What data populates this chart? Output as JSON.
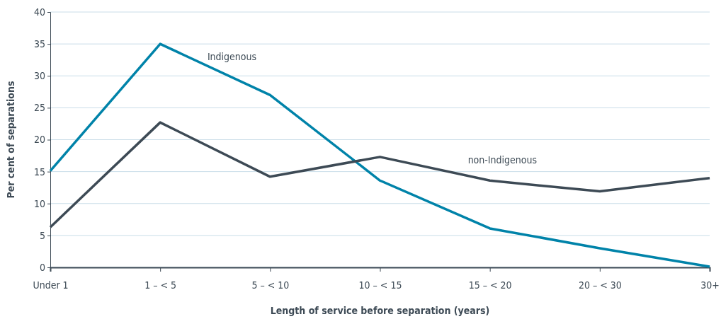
{
  "chart_data": {
    "type": "line",
    "xlabel": "Length of service before separation (years)",
    "ylabel": "Per cent of separations",
    "categories": [
      "Under 1",
      "1 – < 5",
      "5 – < 10",
      "10 – < 15",
      "15 – < 20",
      "20 – < 30",
      "30+"
    ],
    "series": [
      {
        "name": "Indigenous",
        "color": "#0083a9",
        "values": [
          15.1,
          35,
          27,
          13.6,
          6.1,
          3,
          0.1
        ]
      },
      {
        "name": "non-Indigenous",
        "color": "#3d4a55",
        "values": [
          6.3,
          22.7,
          14.2,
          17.3,
          13.6,
          11.9,
          14
        ]
      }
    ],
    "ylim": [
      0,
      40
    ],
    "yticks": [
      0,
      5,
      10,
      15,
      20,
      25,
      30,
      35,
      40
    ],
    "grid": "y",
    "line_style": "solid",
    "marker": "none"
  }
}
